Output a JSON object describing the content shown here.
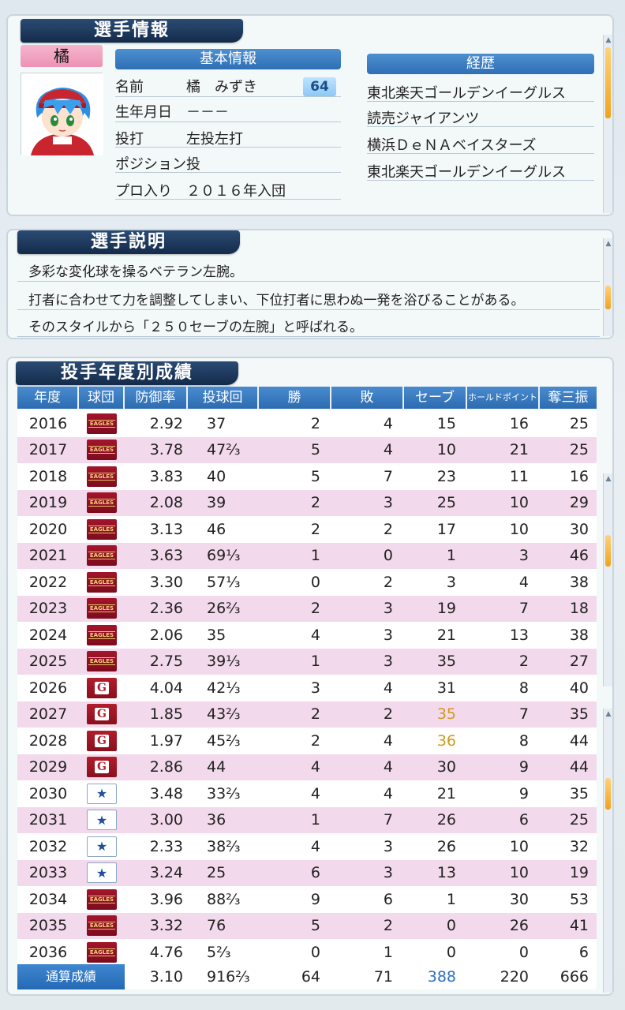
{
  "sections": {
    "player_info_title": "選手情報",
    "basic_info_title": "基本情報",
    "career_title": "経歴",
    "description_title": "選手説明",
    "stats_title": "投手年度別成績"
  },
  "player": {
    "tag_name": "橘",
    "number": "64",
    "fields": [
      {
        "label": "名前",
        "value": "橘　みずき"
      },
      {
        "label": "生年月日",
        "value": "－－－"
      },
      {
        "label": "投打",
        "value": "左投左打"
      },
      {
        "label": "ポジション",
        "value": "投"
      },
      {
        "label": "プロ入り",
        "value": "２０１６年入団"
      }
    ]
  },
  "career": [
    "東北楽天ゴールデンイーグルス",
    "読売ジャイアンツ",
    "横浜ＤｅＮＡベイスターズ",
    "東北楽天ゴールデンイーグルス"
  ],
  "description": [
    "多彩な変化球を操るベテラン左腕。",
    "打者に合わせて力を調整してしまい、下位打者に思わぬ一発を浴びることがある。",
    "そのスタイルから「２５０セーブの左腕」と呼ばれる。"
  ],
  "stats": {
    "headers": [
      "年度",
      "球団",
      "防御率",
      "投球回",
      "勝",
      "敗",
      "セーブ",
      "ホールドポイント",
      "奪三振"
    ],
    "rows": [
      {
        "year": "2016",
        "team": "E",
        "era": "2.92",
        "ip": "37",
        "w": "2",
        "l": "4",
        "sv": "15",
        "hp": "16",
        "so": "25"
      },
      {
        "year": "2017",
        "team": "E",
        "era": "3.78",
        "ip": "47⅔",
        "w": "5",
        "l": "4",
        "sv": "10",
        "hp": "21",
        "so": "25"
      },
      {
        "year": "2018",
        "team": "E",
        "era": "3.83",
        "ip": "40",
        "w": "5",
        "l": "7",
        "sv": "23",
        "hp": "11",
        "so": "16"
      },
      {
        "year": "2019",
        "team": "E",
        "era": "2.08",
        "ip": "39",
        "w": "2",
        "l": "3",
        "sv": "25",
        "hp": "10",
        "so": "29"
      },
      {
        "year": "2020",
        "team": "E",
        "era": "3.13",
        "ip": "46",
        "w": "2",
        "l": "2",
        "sv": "17",
        "hp": "10",
        "so": "30"
      },
      {
        "year": "2021",
        "team": "E",
        "era": "3.63",
        "ip": "69⅓",
        "w": "1",
        "l": "0",
        "sv": "1",
        "hp": "3",
        "so": "46"
      },
      {
        "year": "2022",
        "team": "E",
        "era": "3.30",
        "ip": "57⅓",
        "w": "0",
        "l": "2",
        "sv": "3",
        "hp": "4",
        "so": "38"
      },
      {
        "year": "2023",
        "team": "E",
        "era": "2.36",
        "ip": "26⅔",
        "w": "2",
        "l": "3",
        "sv": "19",
        "hp": "7",
        "so": "18"
      },
      {
        "year": "2024",
        "team": "E",
        "era": "2.06",
        "ip": "35",
        "w": "4",
        "l": "3",
        "sv": "21",
        "hp": "13",
        "so": "38"
      },
      {
        "year": "2025",
        "team": "E",
        "era": "2.75",
        "ip": "39⅓",
        "w": "1",
        "l": "3",
        "sv": "35",
        "hp": "2",
        "so": "27"
      },
      {
        "year": "2026",
        "team": "G",
        "era": "4.04",
        "ip": "42⅓",
        "w": "3",
        "l": "4",
        "sv": "31",
        "hp": "8",
        "so": "40"
      },
      {
        "year": "2027",
        "team": "G",
        "era": "1.85",
        "ip": "43⅔",
        "w": "2",
        "l": "2",
        "sv": "35",
        "hp": "7",
        "so": "35",
        "sv_highlight": "gold"
      },
      {
        "year": "2028",
        "team": "G",
        "era": "1.97",
        "ip": "45⅔",
        "w": "2",
        "l": "4",
        "sv": "36",
        "hp": "8",
        "so": "44",
        "sv_highlight": "gold"
      },
      {
        "year": "2029",
        "team": "G",
        "era": "2.86",
        "ip": "44",
        "w": "4",
        "l": "4",
        "sv": "30",
        "hp": "9",
        "so": "44"
      },
      {
        "year": "2030",
        "team": "D",
        "era": "3.48",
        "ip": "33⅔",
        "w": "4",
        "l": "4",
        "sv": "21",
        "hp": "9",
        "so": "35"
      },
      {
        "year": "2031",
        "team": "D",
        "era": "3.00",
        "ip": "36",
        "w": "1",
        "l": "7",
        "sv": "26",
        "hp": "6",
        "so": "25"
      },
      {
        "year": "2032",
        "team": "D",
        "era": "2.33",
        "ip": "38⅔",
        "w": "4",
        "l": "3",
        "sv": "26",
        "hp": "10",
        "so": "32"
      },
      {
        "year": "2033",
        "team": "D",
        "era": "3.24",
        "ip": "25",
        "w": "6",
        "l": "3",
        "sv": "13",
        "hp": "10",
        "so": "19"
      },
      {
        "year": "2034",
        "team": "E",
        "era": "3.96",
        "ip": "88⅔",
        "w": "9",
        "l": "6",
        "sv": "1",
        "hp": "30",
        "so": "53"
      },
      {
        "year": "2035",
        "team": "E",
        "era": "3.32",
        "ip": "76",
        "w": "5",
        "l": "2",
        "sv": "0",
        "hp": "26",
        "so": "41"
      },
      {
        "year": "2036",
        "team": "E",
        "era": "4.76",
        "ip": "5⅔",
        "w": "0",
        "l": "1",
        "sv": "0",
        "hp": "0",
        "so": "6"
      }
    ],
    "total": {
      "label": "通算成績",
      "era": "3.10",
      "ip": "916⅔",
      "w": "64",
      "l": "71",
      "sv": "388",
      "hp": "220",
      "so": "666"
    },
    "team_logos": {
      "E": {
        "text": "EAGLES",
        "color": "#a3152a"
      },
      "G": {
        "text": "G",
        "color": "#b21d2c"
      },
      "D": {
        "text": "★",
        "color": "#1f4f9c"
      }
    }
  }
}
